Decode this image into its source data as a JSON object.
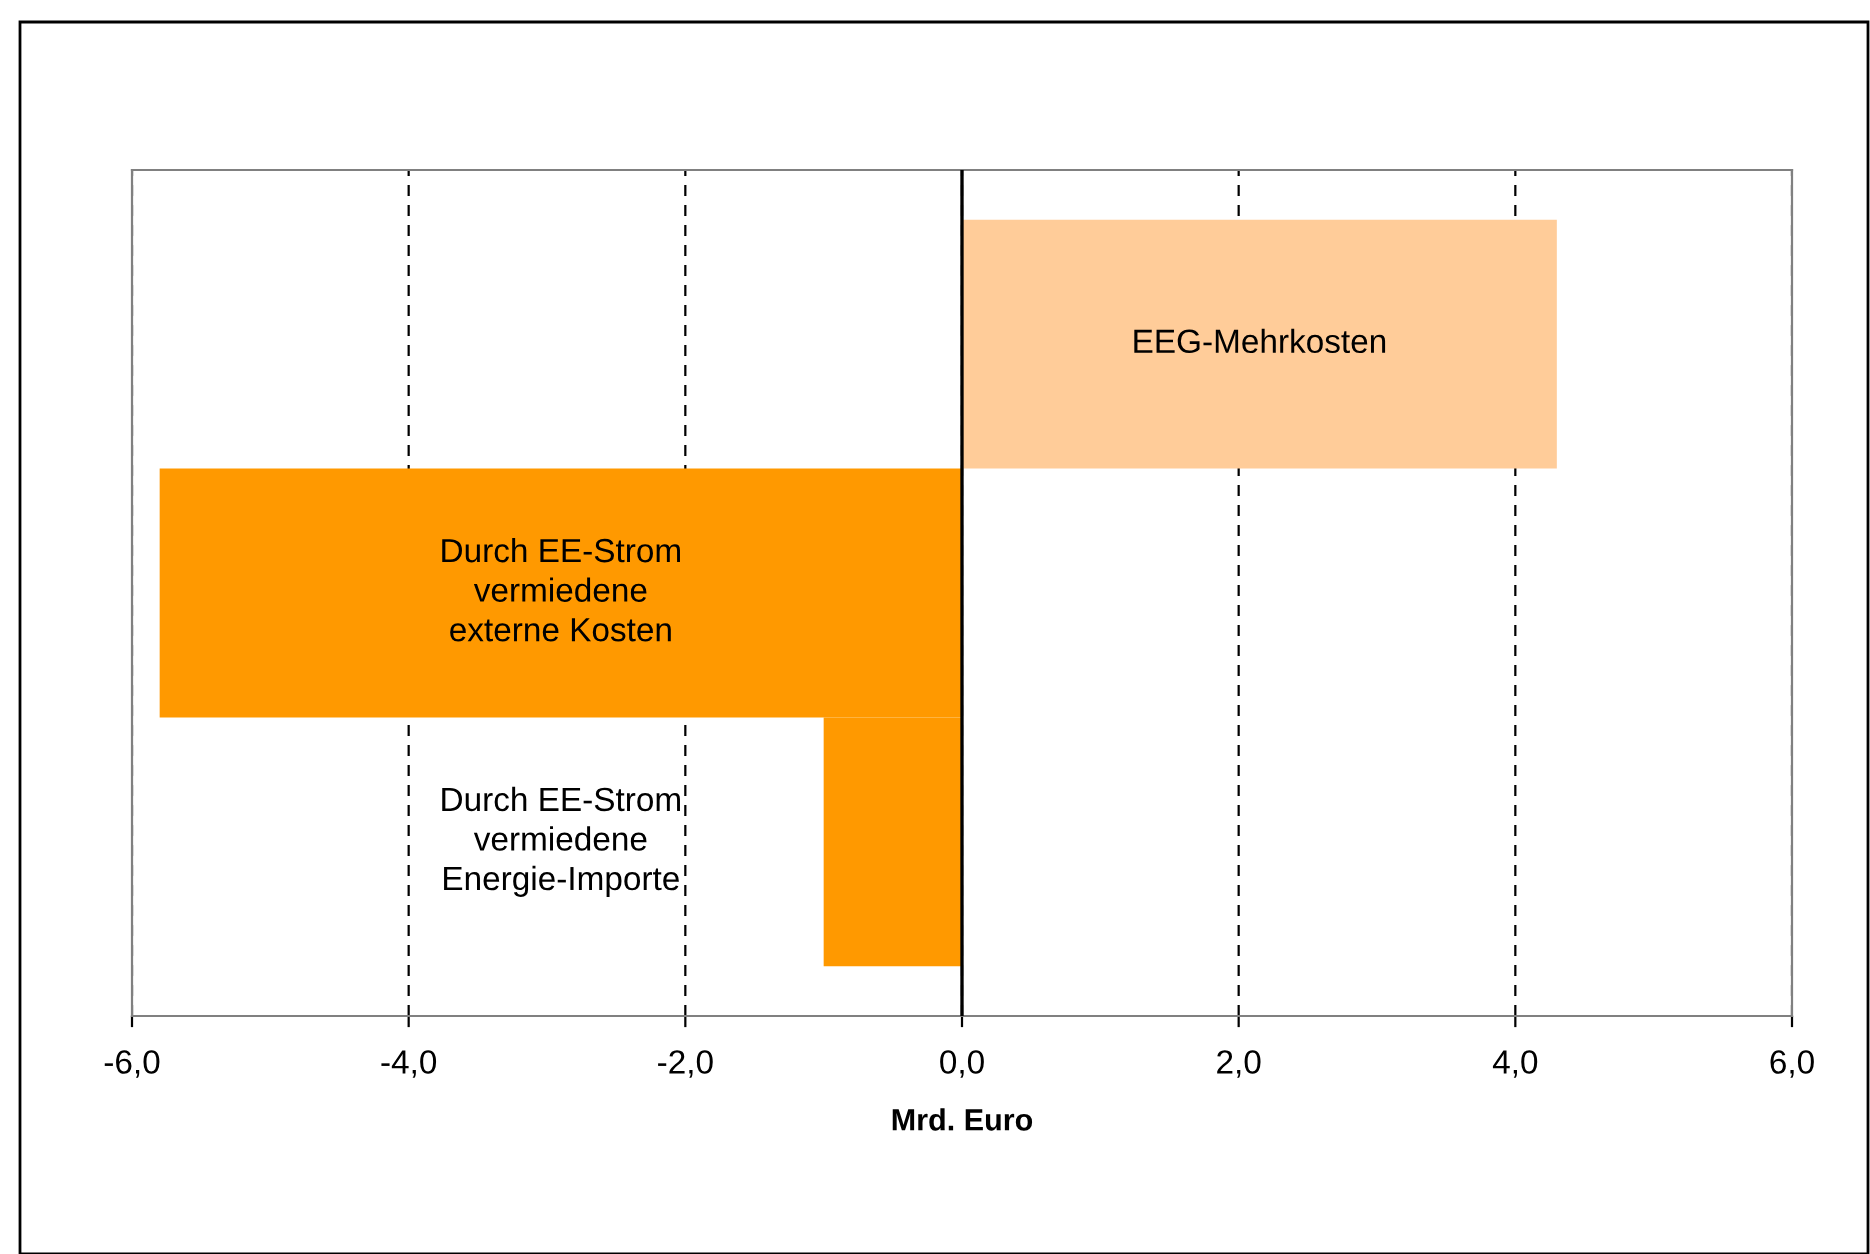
{
  "chart_data": {
    "type": "bar",
    "orientation": "horizontal",
    "categories": [
      "EEG-Mehrkosten",
      "Durch EE-Strom vermiedene externe Kosten",
      "Durch EE-Strom vermiedene Energie-Importe"
    ],
    "values": [
      4.3,
      -5.8,
      -1.0
    ],
    "colors": [
      "#ffcc99",
      "#ff9900",
      "#ff9900"
    ],
    "xlabel": "Mrd. Euro",
    "xlim": [
      -6,
      6
    ],
    "xticks": [
      {
        "value": -6,
        "label": "-6,0"
      },
      {
        "value": -4,
        "label": "-4,0"
      },
      {
        "value": -2,
        "label": "-2,0"
      },
      {
        "value": 0,
        "label": "0,0"
      },
      {
        "value": 2,
        "label": "2,0"
      },
      {
        "value": 4,
        "label": "4,0"
      },
      {
        "value": 6,
        "label": "6,0"
      }
    ],
    "grid": "x"
  }
}
